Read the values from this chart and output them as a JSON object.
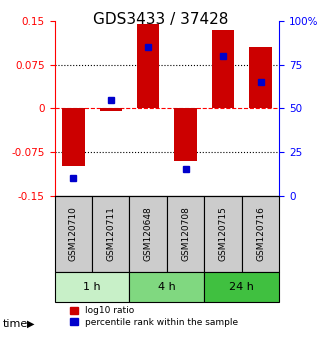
{
  "title": "GDS3433 / 37428",
  "samples": [
    "GSM120710",
    "GSM120711",
    "GSM120648",
    "GSM120708",
    "GSM120715",
    "GSM120716"
  ],
  "log10_ratio": [
    -0.1,
    -0.005,
    0.145,
    -0.09,
    0.135,
    0.105
  ],
  "percentile_rank": [
    10,
    55,
    85,
    15,
    80,
    65
  ],
  "ylim_left": [
    -0.15,
    0.15
  ],
  "ylim_right": [
    0,
    100
  ],
  "yticks_left": [
    -0.15,
    -0.075,
    0,
    0.075,
    0.15
  ],
  "yticks_right": [
    0,
    25,
    50,
    75,
    100
  ],
  "ytick_labels_left": [
    "-0.15",
    "-0.075",
    "0",
    "0.075",
    "0.15"
  ],
  "ytick_labels_right": [
    "0",
    "25",
    "50",
    "75",
    "100%"
  ],
  "hlines": [
    -0.075,
    0,
    0.075
  ],
  "hline_styles": [
    "dotted",
    "dashed",
    "dotted"
  ],
  "time_groups": [
    {
      "label": "1 h",
      "start": 0,
      "end": 2,
      "color": "#c8f0c8"
    },
    {
      "label": "4 h",
      "start": 2,
      "end": 4,
      "color": "#80d880"
    },
    {
      "label": "24 h",
      "start": 4,
      "end": 6,
      "color": "#40c040"
    }
  ],
  "bar_color": "#cc0000",
  "dot_color": "#0000cc",
  "bar_width": 0.6,
  "dot_size": 8,
  "background_color": "#ffffff",
  "plot_bg_color": "#ffffff",
  "sample_box_color": "#cccccc",
  "legend_red_label": "log10 ratio",
  "legend_blue_label": "percentile rank within the sample",
  "time_label": "time",
  "title_fontsize": 11,
  "axis_fontsize": 8,
  "tick_fontsize": 7.5
}
